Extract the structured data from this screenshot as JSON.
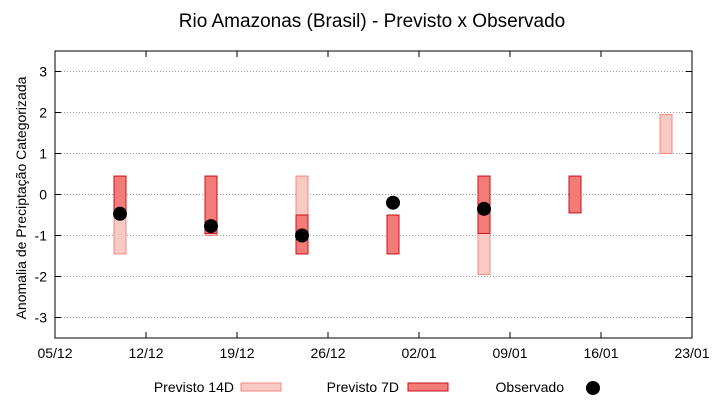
{
  "chart_data": {
    "type": "bar",
    "title": "Rio Amazonas (Brasil) - Previsto x Observado",
    "xlabel": "",
    "ylabel": "Anomalia de Preciptação Categorizada",
    "x_ticks": [
      "05/12",
      "12/12",
      "19/12",
      "26/12",
      "02/01",
      "09/01",
      "16/01",
      "23/01"
    ],
    "xlim": [
      "05/12",
      "23/01"
    ],
    "ylim": [
      -3.5,
      3.5
    ],
    "y_ticks": [
      -3,
      -2,
      -1,
      0,
      1,
      2,
      3
    ],
    "grid": "horizontal dotted",
    "legend": "bottom",
    "series": [
      {
        "name": "Previsto 14D",
        "kind": "range-bar",
        "fill": "#f9c9c4",
        "stroke": "#f08a80",
        "data": [
          {
            "x": "10/12",
            "low": -1.45,
            "high": 0.45
          },
          {
            "x": "17/12",
            "low": -1.0,
            "high": 0.45
          },
          {
            "x": "24/12",
            "low": -1.45,
            "high": 0.45
          },
          {
            "x": "07/01",
            "low": -1.95,
            "high": 0.45
          },
          {
            "x": "21/01",
            "low": 1.0,
            "high": 1.95
          }
        ]
      },
      {
        "name": "Previsto 7D",
        "kind": "range-bar",
        "fill": "#f47c78",
        "stroke": "#c8101a",
        "data": [
          {
            "x": "10/12",
            "low": -0.5,
            "high": 0.45
          },
          {
            "x": "17/12",
            "low": -0.95,
            "high": 0.45
          },
          {
            "x": "24/12",
            "low": -1.45,
            "high": -0.5
          },
          {
            "x": "31/12",
            "low": -1.45,
            "high": -0.5
          },
          {
            "x": "07/01",
            "low": -0.95,
            "high": 0.45
          },
          {
            "x": "14/01",
            "low": -0.45,
            "high": 0.45
          }
        ]
      },
      {
        "name": "Observado",
        "kind": "point",
        "color": "#000000",
        "data": [
          {
            "x": "10/12",
            "y": -0.47
          },
          {
            "x": "17/12",
            "y": -0.77
          },
          {
            "x": "24/12",
            "y": -1.0
          },
          {
            "x": "31/12",
            "y": -0.2
          },
          {
            "x": "07/01",
            "y": -0.35
          }
        ]
      }
    ]
  }
}
